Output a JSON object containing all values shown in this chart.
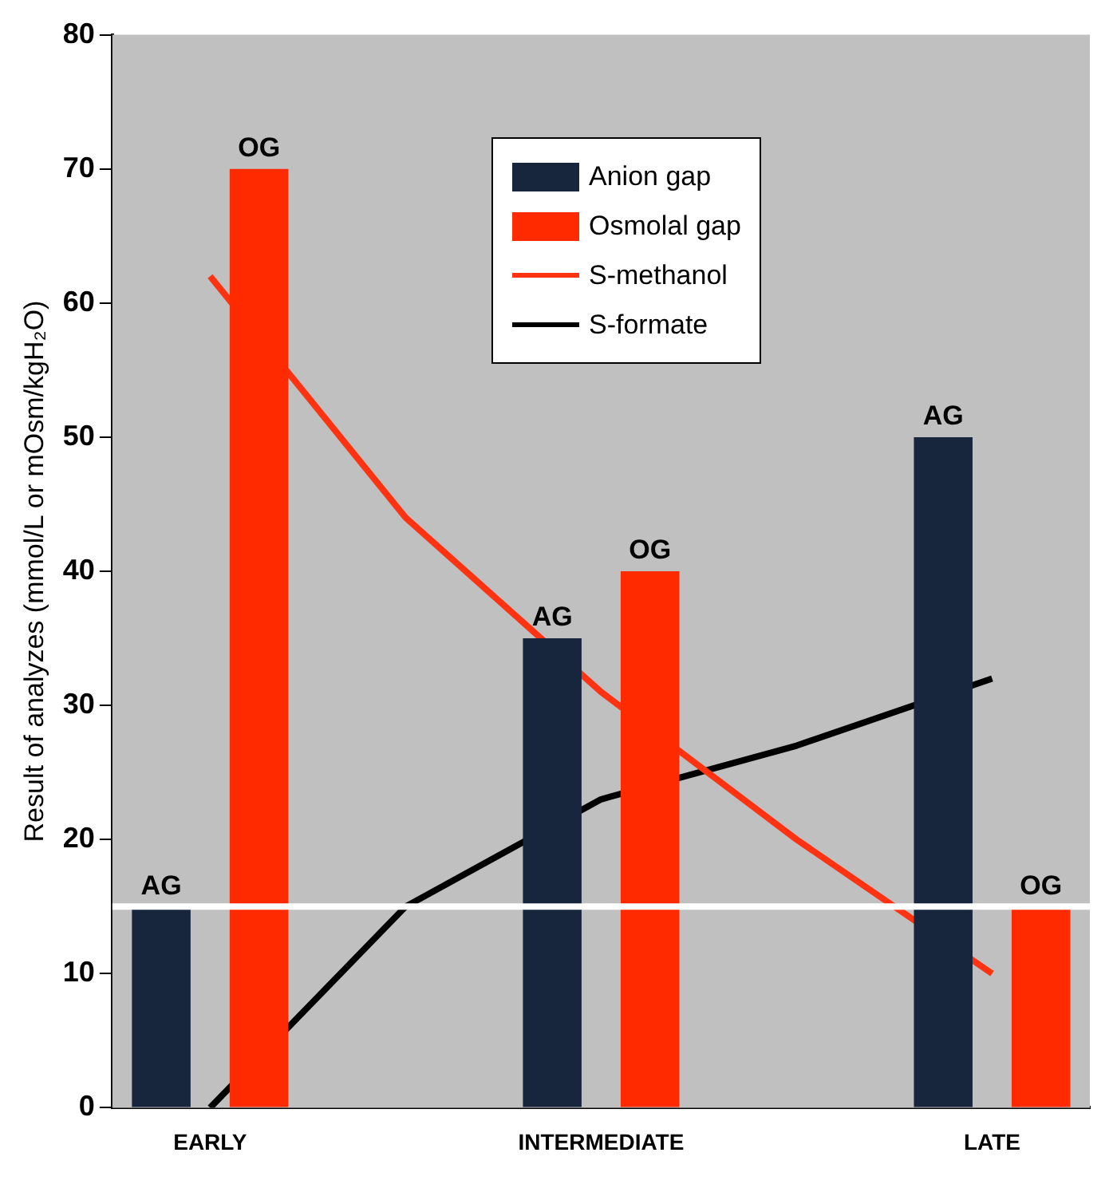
{
  "chart_data": {
    "type": "bar",
    "ylabel": "Result of analyzes (mmol/L or mOsm/kgH₂O)",
    "categories": [
      "EARLY",
      null,
      "INTERMEDIATE",
      null,
      "LATE"
    ],
    "series": [
      {
        "name": "Anion gap",
        "color": "#17253d",
        "values": [
          15,
          null,
          35,
          null,
          50
        ],
        "value_labels": [
          "AG",
          null,
          "AG",
          null,
          "AG"
        ]
      },
      {
        "name": "Osmolal gap",
        "color": "#ff2a00",
        "values": [
          70,
          null,
          40,
          null,
          15
        ],
        "value_labels": [
          "OG",
          null,
          "OG",
          null,
          "OG"
        ]
      },
      {
        "name": "S-methanol",
        "type": "line",
        "color": "#ff3311",
        "values": [
          62,
          44,
          31,
          20,
          10
        ]
      },
      {
        "name": "S-formate",
        "type": "line",
        "color": "#000000",
        "values": [
          0,
          15,
          23,
          27,
          32
        ]
      }
    ],
    "ylim": [
      0,
      80
    ],
    "yticks": [
      0,
      10,
      20,
      30,
      40,
      50,
      60,
      70,
      80
    ],
    "ref_lines": [
      {
        "axis": "y",
        "value": 15,
        "label": null,
        "color": "#ffffff"
      }
    ],
    "grid": false,
    "legend": "top right",
    "marker": "none",
    "line_style": "solid"
  }
}
